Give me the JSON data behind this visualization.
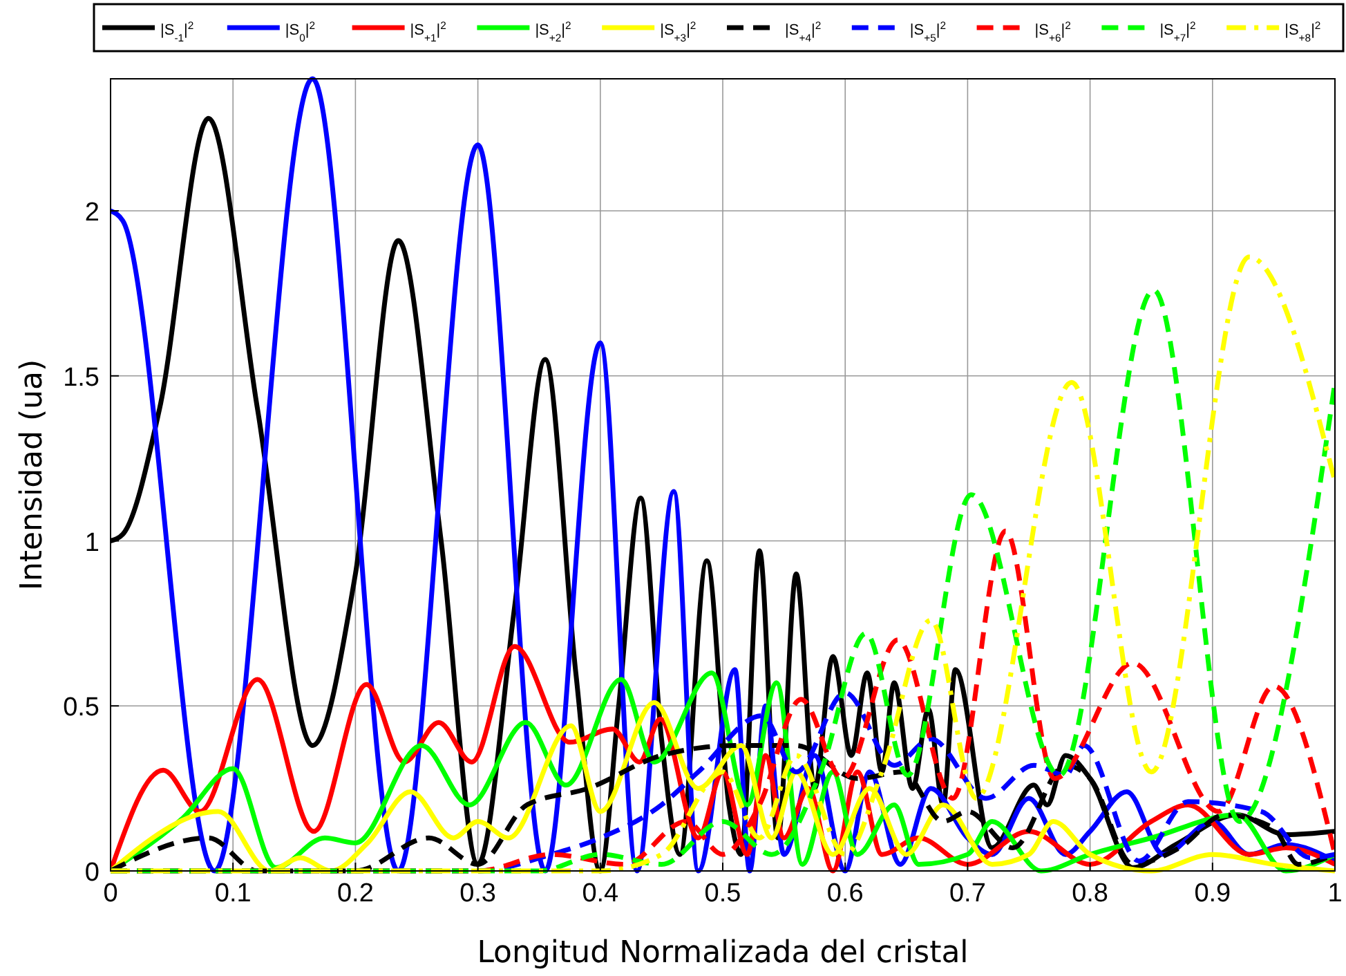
{
  "chart_data": {
    "type": "line",
    "xlabel": "Longitud Normalizada del cristal",
    "ylabel": "Intensidad (ua)",
    "xlim": [
      0,
      1
    ],
    "ylim": [
      0,
      2.4
    ],
    "xticks": [
      0,
      0.1,
      0.2,
      0.3,
      0.4,
      0.5,
      0.6,
      0.7,
      0.8,
      0.9,
      1
    ],
    "yticks": [
      0,
      0.5,
      1,
      1.5,
      2
    ],
    "grid": true,
    "legend": "top",
    "series": [
      {
        "name": "|S$_{-1}$|$^{2}$",
        "color": "#000000",
        "line_style": "solid",
        "x": [
          0,
          0.01,
          0.04,
          0.08,
          0.12,
          0.165,
          0.2,
          0.235,
          0.27,
          0.3,
          0.33,
          0.355,
          0.38,
          0.4,
          0.415,
          0.433,
          0.45,
          0.465,
          0.487,
          0.505,
          0.515,
          0.53,
          0.545,
          0.56,
          0.575,
          0.59,
          0.605,
          0.618,
          0.63,
          0.64,
          0.655,
          0.668,
          0.68,
          0.69,
          0.72,
          0.754,
          0.765,
          0.78,
          0.8,
          0.835,
          0.87,
          0.92,
          0.96,
          1
        ],
        "values": [
          1,
          1.02,
          1.4,
          2.28,
          1.4,
          0.38,
          0.9,
          1.91,
          1.0,
          0.02,
          0.8,
          1.55,
          0.6,
          0.0,
          0.5,
          1.13,
          0.4,
          0.05,
          0.94,
          0.2,
          0.05,
          0.97,
          0.1,
          0.9,
          0.25,
          0.65,
          0.35,
          0.6,
          0.3,
          0.57,
          0.25,
          0.49,
          0.2,
          0.61,
          0.07,
          0.26,
          0.2,
          0.35,
          0.28,
          0.01,
          0.08,
          0.17,
          0.11,
          0.12
        ]
      },
      {
        "name": "|S$_{0}$|$^{2}$",
        "color": "#0000ff",
        "line_style": "solid",
        "x": [
          0,
          0.01,
          0.085,
          0.165,
          0.235,
          0.3,
          0.355,
          0.4,
          0.43,
          0.46,
          0.48,
          0.51,
          0.522,
          0.535,
          0.55,
          0.575,
          0.6,
          0.62,
          0.645,
          0.67,
          0.7,
          0.72,
          0.75,
          0.78,
          0.8,
          0.83,
          0.86,
          0.9,
          0.93,
          0.96,
          1
        ],
        "values": [
          2.0,
          1.97,
          0.0,
          2.4,
          0.0,
          2.2,
          0.0,
          1.6,
          0.0,
          1.15,
          0.0,
          0.61,
          0.0,
          0.5,
          0.05,
          0.35,
          0.0,
          0.3,
          0.02,
          0.25,
          0.1,
          0.05,
          0.22,
          0.05,
          0.12,
          0.24,
          0.05,
          0.15,
          0.05,
          0.08,
          0.03
        ]
      },
      {
        "name": "|S$_{+1}$|$^{2}$",
        "color": "#ff0000",
        "line_style": "solid",
        "x": [
          0,
          0.043,
          0.073,
          0.12,
          0.166,
          0.209,
          0.24,
          0.268,
          0.295,
          0.33,
          0.375,
          0.41,
          0.432,
          0.449,
          0.48,
          0.5,
          0.52,
          0.535,
          0.55,
          0.57,
          0.59,
          0.61,
          0.63,
          0.66,
          0.7,
          0.75,
          0.8,
          0.85,
          0.88,
          0.93,
          0.96,
          1
        ],
        "values": [
          0,
          0.305,
          0.18,
          0.58,
          0.12,
          0.565,
          0.33,
          0.45,
          0.33,
          0.68,
          0.39,
          0.43,
          0.33,
          0.46,
          0.1,
          0.3,
          0.05,
          0.35,
          0.1,
          0.25,
          0.0,
          0.3,
          0.05,
          0.1,
          0.02,
          0.12,
          0.02,
          0.15,
          0.2,
          0.05,
          0.07,
          0.02
        ]
      },
      {
        "name": "|S$_{+2}$|$^{2}$",
        "color": "#00ff00",
        "line_style": "solid",
        "x": [
          0,
          0.059,
          0.1,
          0.135,
          0.175,
          0.2,
          0.254,
          0.293,
          0.339,
          0.372,
          0.417,
          0.444,
          0.491,
          0.52,
          0.544,
          0.565,
          0.59,
          0.61,
          0.64,
          0.66,
          0.7,
          0.72,
          0.76,
          0.8,
          0.85,
          0.92,
          0.96,
          1
        ],
        "values": [
          0,
          0.16,
          0.31,
          0.01,
          0.1,
          0.085,
          0.38,
          0.2,
          0.45,
          0.26,
          0.58,
          0.33,
          0.6,
          0.2,
          0.57,
          0.02,
          0.3,
          0.05,
          0.2,
          0.02,
          0.05,
          0.15,
          0.0,
          0.05,
          0.1,
          0.17,
          0.0,
          0.05
        ]
      },
      {
        "name": "|S$_{+3}$|$^{2}$",
        "color": "#ffff00",
        "line_style": "solid",
        "x": [
          0,
          0.088,
          0.13,
          0.155,
          0.18,
          0.21,
          0.245,
          0.28,
          0.3,
          0.325,
          0.376,
          0.4,
          0.444,
          0.48,
          0.515,
          0.54,
          0.56,
          0.59,
          0.62,
          0.65,
          0.68,
          0.72,
          0.75,
          0.77,
          0.8,
          0.85,
          0.9,
          0.95,
          1
        ],
        "values": [
          0,
          0.18,
          0.0,
          0.04,
          0.0,
          0.085,
          0.24,
          0.1,
          0.15,
          0.1,
          0.44,
          0.18,
          0.51,
          0.25,
          0.38,
          0.1,
          0.3,
          0.05,
          0.25,
          0.05,
          0.2,
          0.02,
          0.05,
          0.15,
          0.05,
          0.0,
          0.05,
          0.02,
          0.0
        ]
      },
      {
        "name": "|S$_{+4}$|$^{2}$",
        "color": "#000000",
        "line_style": "dashed",
        "x": [
          0,
          0.08,
          0.12,
          0.2,
          0.26,
          0.3,
          0.34,
          0.39,
          0.45,
          0.51,
          0.56,
          0.61,
          0.647,
          0.68,
          0.7,
          0.737,
          0.78,
          0.8,
          0.835,
          0.873,
          0.91,
          0.95,
          0.97,
          1
        ],
        "values": [
          0,
          0.1,
          0.0,
          0.0,
          0.1,
          0.02,
          0.2,
          0.25,
          0.35,
          0.38,
          0.38,
          0.28,
          0.3,
          0.15,
          0.18,
          0.07,
          0.32,
          0.28,
          0.02,
          0.07,
          0.17,
          0.13,
          0.02,
          0.05
        ]
      },
      {
        "name": "|S$_{+5}$|$^{2}$",
        "color": "#0000ff",
        "line_style": "dashed",
        "x": [
          0,
          0.3,
          0.36,
          0.4,
          0.45,
          0.48,
          0.532,
          0.56,
          0.6,
          0.64,
          0.67,
          0.715,
          0.754,
          0.78,
          0.795,
          0.84,
          0.88,
          0.94,
          0.98,
          1
        ],
        "values": [
          0,
          0.0,
          0.05,
          0.1,
          0.2,
          0.3,
          0.47,
          0.3,
          0.54,
          0.32,
          0.4,
          0.22,
          0.32,
          0.29,
          0.38,
          0.03,
          0.21,
          0.18,
          0.04,
          0.05
        ]
      },
      {
        "name": "|S$_{+6}$|$^{2}$",
        "color": "#ff0000",
        "line_style": "dashed",
        "x": [
          0,
          0.3,
          0.36,
          0.42,
          0.47,
          0.5,
          0.53,
          0.564,
          0.598,
          0.643,
          0.688,
          0.731,
          0.771,
          0.835,
          0.905,
          0.95,
          1
        ],
        "values": [
          0,
          0.0,
          0.05,
          0.02,
          0.15,
          0.05,
          0.2,
          0.52,
          0.28,
          0.7,
          0.22,
          1.03,
          0.28,
          0.63,
          0.18,
          0.56,
          0.05
        ]
      },
      {
        "name": "|S$_{+7}$|$^{2}$",
        "color": "#00ff00",
        "line_style": "dashed",
        "x": [
          0,
          0.35,
          0.4,
          0.45,
          0.5,
          0.54,
          0.58,
          0.617,
          0.651,
          0.703,
          0.775,
          0.852,
          0.922,
          1
        ],
        "values": [
          0,
          0.0,
          0.05,
          0.02,
          0.15,
          0.05,
          0.3,
          0.72,
          0.29,
          1.14,
          0.29,
          1.76,
          0.15,
          1.48
        ]
      },
      {
        "name": "|S$_{+8}$|$^{2}$",
        "color": "#ffff00",
        "line_style": "dashdot",
        "x": [
          0,
          0.4,
          0.45,
          0.5,
          0.53,
          0.56,
          0.6,
          0.63,
          0.67,
          0.707,
          0.785,
          0.85,
          0.93,
          1
        ],
        "values": [
          0,
          0.0,
          0.05,
          0.3,
          0.1,
          0.35,
          0.05,
          0.3,
          0.76,
          0.22,
          1.48,
          0.3,
          1.86,
          1.18
        ]
      }
    ]
  }
}
